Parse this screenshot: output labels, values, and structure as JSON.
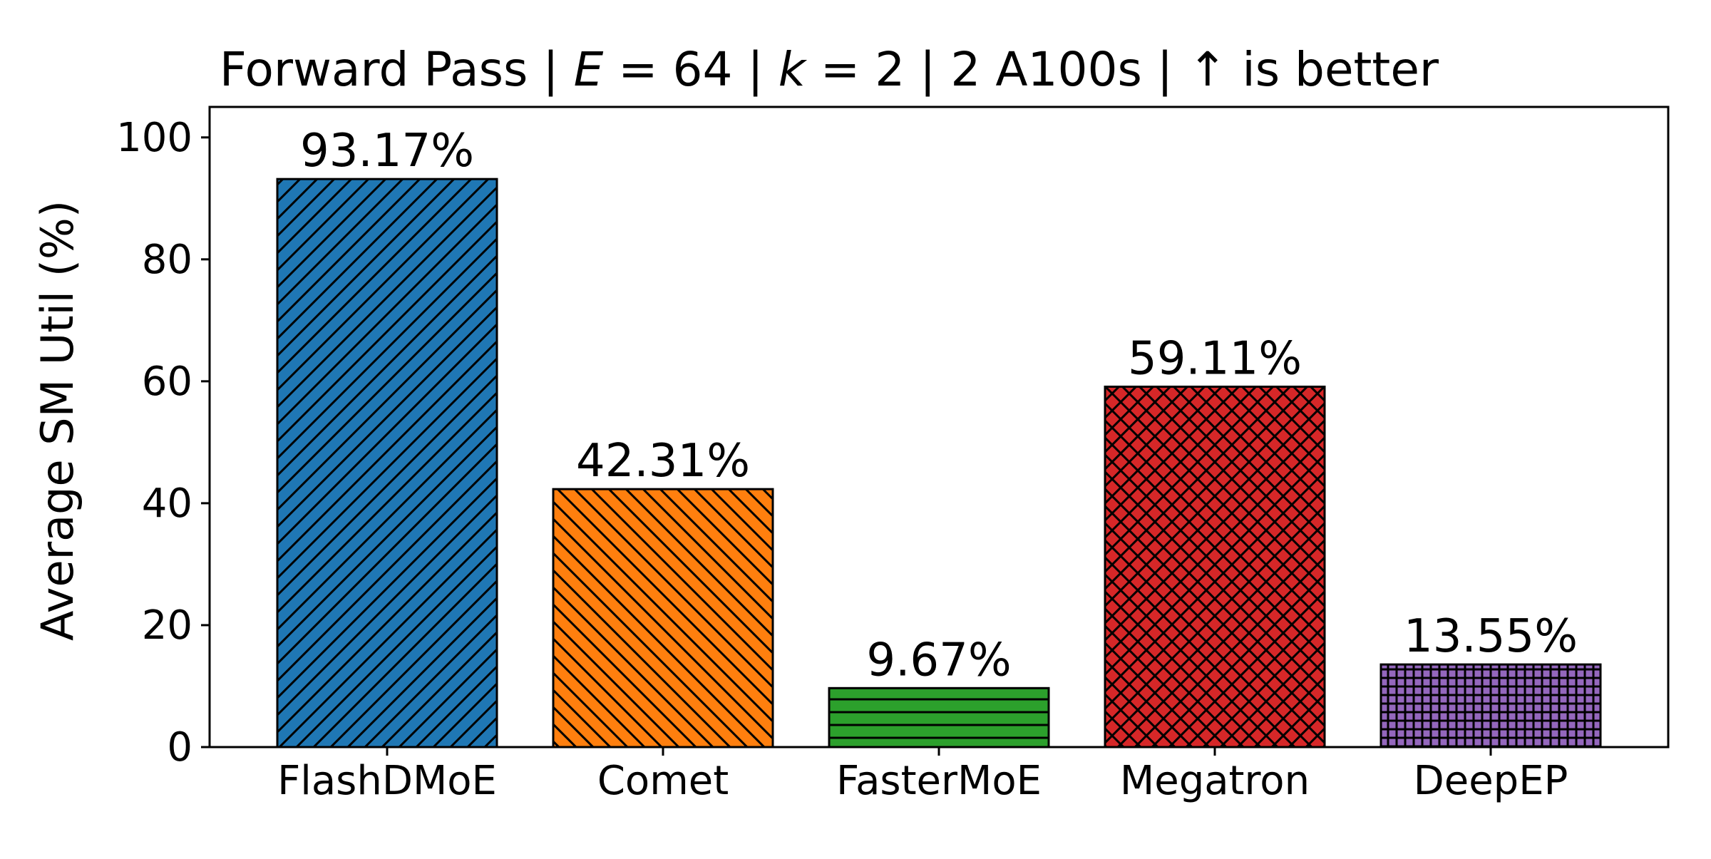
{
  "chart_data": {
    "type": "bar",
    "title": "Forward Pass | E = 64 | k = 2 | 2 A100s | ↑ is better",
    "title_parts": {
      "prefix": "Forward Pass | ",
      "e_symbol": "E",
      "e_rest": " = 64 | ",
      "k_symbol": "k",
      "k_rest": " = 2 | 2 A100s | ↑ is better"
    },
    "xlabel": "",
    "ylabel": "Average SM Util (%)",
    "ylim": [
      0,
      105
    ],
    "yticks": [
      0,
      20,
      40,
      60,
      80,
      100
    ],
    "ytick_labels": [
      "0",
      "20",
      "40",
      "60",
      "80",
      "100"
    ],
    "grid": false,
    "categories": [
      "FlashDMoE",
      "Comet",
      "FasterMoE",
      "Megatron",
      "DeepEP"
    ],
    "values": [
      93.17,
      42.31,
      9.67,
      59.11,
      13.55
    ],
    "value_labels": [
      "93.17%",
      "42.31%",
      "9.67%",
      "59.11%",
      "13.55%"
    ],
    "colors": [
      "#1f77b4",
      "#ff7f0e",
      "#2ca02c",
      "#d62728",
      "#9467bd"
    ],
    "hatches": [
      "diagonal-forward",
      "diagonal-back",
      "horizontal",
      "crosshatch-diagonal",
      "grid"
    ]
  }
}
